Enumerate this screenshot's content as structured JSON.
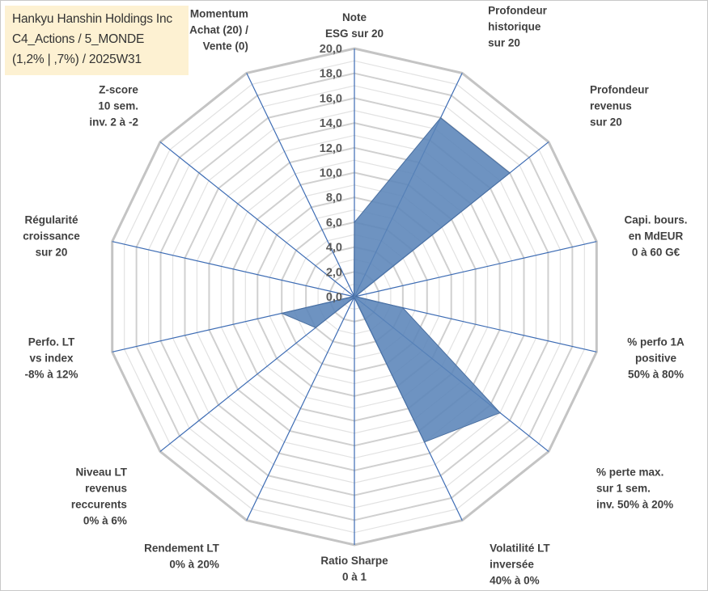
{
  "title": {
    "lines": [
      "Hankyu Hanshin Holdings Inc",
      "C4_Actions / 5_MONDE",
      "(1,2% | ,7%) / 2025W31"
    ]
  },
  "colors": {
    "fill": "#5a84b8",
    "stroke": "#4a6fa0",
    "grid": "#d0d0d0",
    "spoke": "#3d6cb4",
    "title_bg": "#fdf1d2"
  },
  "chart_data": {
    "type": "radar",
    "rmin": 0,
    "rmax": 20,
    "ticks": [
      "0,0",
      "2,0",
      "4,0",
      "6,0",
      "8,0",
      "10,0",
      "12,0",
      "14,0",
      "16,0",
      "18,0",
      "20,0"
    ],
    "axes": [
      {
        "label": [
          "Note",
          "ESG sur 20"
        ],
        "value": 6.0
      },
      {
        "label": [
          "Profondeur",
          "historique",
          "sur 20"
        ],
        "value": 16.0
      },
      {
        "label": [
          "Profondeur",
          "revenus",
          "sur 20"
        ],
        "value": 16.0
      },
      {
        "label": [
          "Capi. bours.",
          "en MdEUR",
          "0 à 60 G€"
        ],
        "value": 0.1
      },
      {
        "label": [
          "% perfo 1A",
          "positive",
          "50% à 80%"
        ],
        "value": 4.0
      },
      {
        "label": [
          "% perte max.",
          "sur 1 sem.",
          "inv. 50% à 20%"
        ],
        "value": 15.0
      },
      {
        "label": [
          "Volatilité LT",
          "inversée",
          "40% à 0%"
        ],
        "value": 13.0
      },
      {
        "label": [
          "Ratio Sharpe",
          "0 à 1"
        ],
        "value": 0.1
      },
      {
        "label": [
          "Rendement LT",
          "0% à 20%"
        ],
        "value": 0.1
      },
      {
        "label": [
          "Niveau LT",
          "revenus",
          "reccurents",
          "0% à 6%"
        ],
        "value": 4.0
      },
      {
        "label": [
          "Perfo. LT",
          "vs index",
          "-8% à 12%"
        ],
        "value": 6.0
      },
      {
        "label": [
          "Régularité",
          "croissance",
          "sur 20"
        ],
        "value": 0.1
      },
      {
        "label": [
          "Z-score",
          "10 sem.",
          "inv. 2 à -2"
        ],
        "value": 0.1
      },
      {
        "label": [
          "Momentum",
          "Achat (20) /",
          "Vente (0)"
        ],
        "value": 0.1
      }
    ]
  }
}
